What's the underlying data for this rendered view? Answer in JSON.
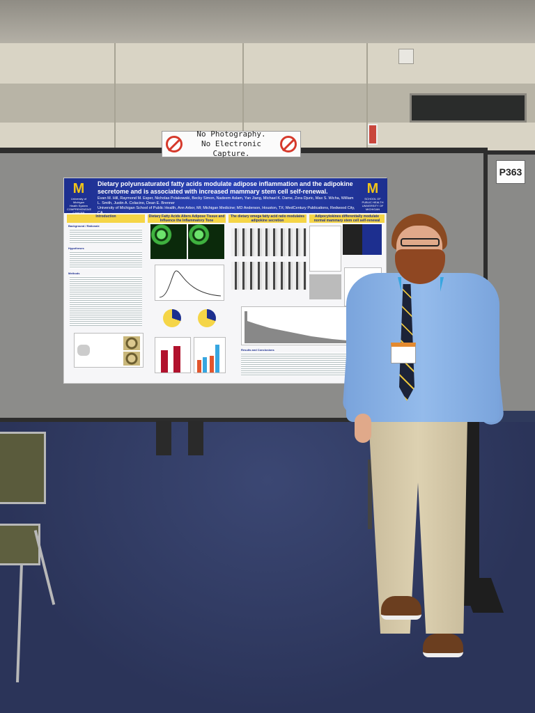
{
  "sign": {
    "line1": "No Photography.",
    "line2": "No Electronic Capture."
  },
  "board_label": "P363",
  "poster": {
    "title": "Dietary polyunsaturated fatty acids modulate adipose inflammation and the adipokine secretome and is associated with increased mammary stem cell self-renewal.",
    "authors": "Evan M. Hill, Raymond M. Esper, Nicholas Polakowski, Becky Simon, Nadeem Aslam, Yan Jiang, Michael K. Dame, Zora Djuric, Max S. Wicha, William L. Smith, Justin A. Colacino, Dean E. Brenner",
    "affiliations": "University of Michigan School of Public Health, Ann Arbor, MI; Michigan Medicine; MD Anderson, Houston, TX; MedCentury Publications, Redwood City, CA",
    "left_logo": {
      "letter": "M",
      "lines": [
        "University of Michigan",
        "Health System",
        "COMPREHENSIVE",
        "CANCER CENTER"
      ]
    },
    "right_logo": {
      "letter": "M",
      "lines": [
        "SCHOOL OF",
        "PUBLIC HEALTH",
        "UNIVERSITY OF MICHIGAN"
      ]
    },
    "sections": [
      "Introduction",
      "Dietary Fatty Acids Alters Adipose Tissue and Influence the Inflammatory Tone",
      "The dietary omega fatty acid ratio modulates adipokine secretion",
      "Adipocytokines differentially modulate normal mammary stem cell self-renewal"
    ],
    "subheads": {
      "background": "Background / Rationale",
      "hypotheses": "Hypotheses",
      "methods": "Methods",
      "results": "Results and Conclusions"
    }
  },
  "colors": {
    "poster_blue": "#1d2f8f",
    "poster_yellow": "#f5d547",
    "board_gray": "#8c8c8a",
    "carpet": "#2f3a5c",
    "shirt": "#86afe3",
    "lanyard": "#37a6e0"
  }
}
